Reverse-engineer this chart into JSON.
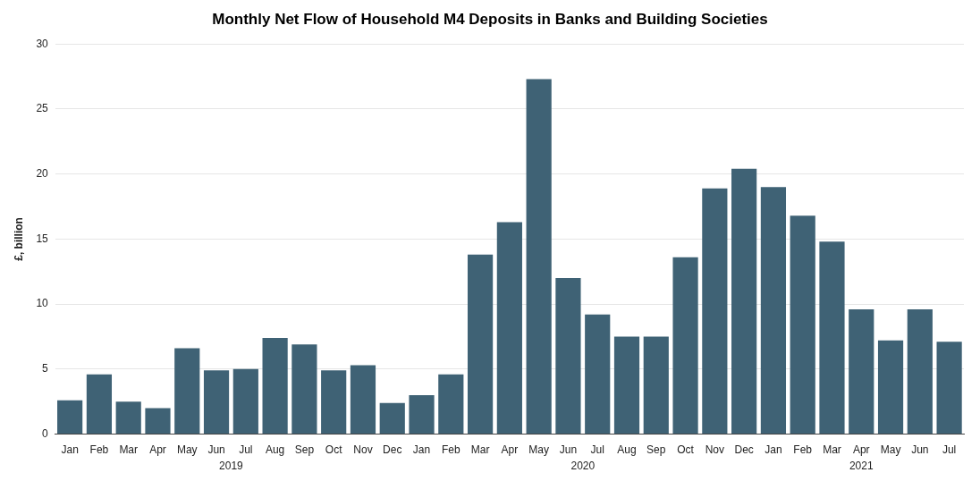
{
  "chart_data": {
    "type": "bar",
    "title": "Monthly Net Flow of Household M4 Deposits in Banks and Building Societies",
    "ylabel": "£, billion",
    "categories": [
      "Jan",
      "Feb",
      "Mar",
      "Apr",
      "May",
      "Jun",
      "Jul",
      "Aug",
      "Sep",
      "Oct",
      "Nov",
      "Dec",
      "Jan",
      "Feb",
      "Mar",
      "Apr",
      "May",
      "Jun",
      "Jul",
      "Aug",
      "Sep",
      "Oct",
      "Nov",
      "Dec",
      "Jan",
      "Feb",
      "Mar",
      "Apr",
      "May",
      "Jun",
      "Jul"
    ],
    "values": [
      2.6,
      4.6,
      2.5,
      2.0,
      6.6,
      4.9,
      5.0,
      7.4,
      6.9,
      4.9,
      5.3,
      2.4,
      3.0,
      4.6,
      13.8,
      16.3,
      27.3,
      12.0,
      9.2,
      7.5,
      7.5,
      13.6,
      18.9,
      20.4,
      19.0,
      16.8,
      14.8,
      9.6,
      7.2,
      9.6,
      7.1
    ],
    "color": "#3f6275",
    "ylim": [
      0,
      30
    ],
    "yticks": [
      0,
      5,
      10,
      15,
      20,
      25,
      30
    ],
    "grid": "y",
    "annotations": [
      "2019",
      "2020",
      "2021"
    ]
  }
}
